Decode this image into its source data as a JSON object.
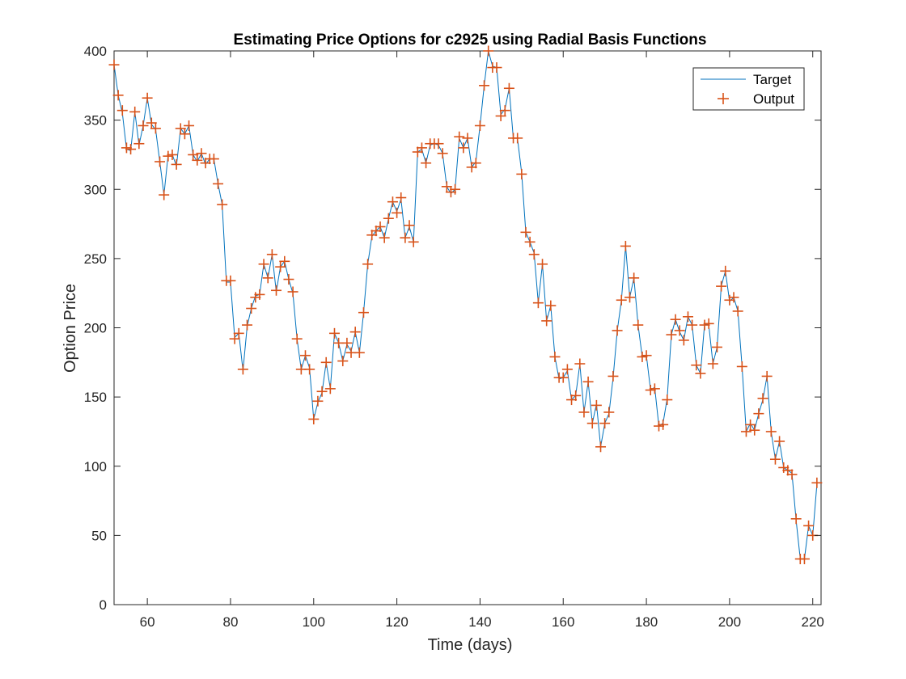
{
  "chart_data": {
    "type": "line",
    "title": "Estimating Price Options for c2925 using Radial Basis Functions",
    "xlabel": "Time (days)",
    "ylabel": "Option Price",
    "xlim": [
      52,
      222
    ],
    "ylim": [
      0,
      400
    ],
    "xticks": [
      60,
      80,
      100,
      120,
      140,
      160,
      180,
      200,
      220
    ],
    "yticks": [
      0,
      50,
      100,
      150,
      200,
      250,
      300,
      350,
      400
    ],
    "grid": false,
    "legend_position": "top-right",
    "colors": {
      "target": "#0072BD",
      "output": "#D95319",
      "axes": "#262626"
    },
    "x_start": 52,
    "series": [
      {
        "name": "Target",
        "style": "line",
        "values": [
          390,
          368,
          355,
          329,
          328,
          356,
          332,
          346,
          366,
          347,
          343,
          320,
          296,
          325,
          325,
          317,
          344,
          340,
          346,
          325,
          320,
          326,
          318,
          322,
          322,
          304,
          289,
          233,
          233,
          193,
          196,
          169,
          201,
          214,
          223,
          224,
          246,
          236,
          253,
          226,
          244,
          248,
          235,
          225,
          192,
          170,
          180,
          171,
          134,
          146,
          153,
          175,
          156,
          196,
          189,
          176,
          188,
          183,
          197,
          182,
          211,
          246,
          266,
          270,
          273,
          265,
          279,
          291,
          284,
          293,
          265,
          273,
          262,
          327,
          329,
          319,
          332,
          333,
          332,
          326,
          302,
          297,
          300,
          337,
          330,
          337,
          316,
          320,
          346,
          375,
          400,
          389,
          388,
          354,
          358,
          373,
          337,
          337,
          312,
          269,
          262,
          254,
          218,
          246,
          205,
          216,
          179,
          163,
          164,
          169,
          148,
          151,
          174,
          139,
          161,
          131,
          145,
          114,
          131,
          138,
          164,
          198,
          220,
          259,
          222,
          236,
          202,
          179,
          180,
          155,
          157,
          129,
          131,
          149,
          195,
          206,
          197,
          191,
          208,
          202,
          173,
          167,
          203,
          202,
          174,
          186,
          230,
          241,
          219,
          222,
          212,
          172,
          125,
          131,
          126,
          138,
          148,
          165,
          125,
          105,
          118,
          99,
          97,
          95,
          61,
          33,
          33,
          57,
          50,
          87
        ]
      },
      {
        "name": "Output",
        "style": "markers",
        "values": [
          390,
          368,
          357,
          330,
          329,
          356,
          333,
          346,
          366,
          348,
          344,
          320,
          296,
          324,
          325,
          318,
          344,
          340,
          346,
          325,
          321,
          326,
          319,
          322,
          322,
          304,
          289,
          234,
          234,
          192,
          196,
          170,
          202,
          214,
          222,
          224,
          246,
          236,
          253,
          227,
          244,
          248,
          235,
          226,
          192,
          170,
          180,
          170,
          134,
          147,
          154,
          175,
          156,
          196,
          189,
          176,
          189,
          182,
          197,
          182,
          211,
          246,
          267,
          270,
          273,
          265,
          279,
          291,
          283,
          294,
          265,
          274,
          262,
          327,
          330,
          319,
          333,
          333,
          333,
          326,
          302,
          298,
          300,
          338,
          330,
          337,
          316,
          319,
          346,
          375,
          400,
          388,
          388,
          353,
          357,
          373,
          337,
          337,
          311,
          269,
          262,
          253,
          218,
          246,
          205,
          216,
          179,
          164,
          164,
          170,
          148,
          151,
          174,
          139,
          161,
          131,
          144,
          114,
          131,
          139,
          165,
          198,
          220,
          259,
          222,
          236,
          202,
          179,
          180,
          155,
          156,
          129,
          130,
          148,
          195,
          206,
          198,
          191,
          208,
          202,
          173,
          167,
          202,
          203,
          174,
          186,
          230,
          241,
          220,
          222,
          212,
          172,
          125,
          130,
          126,
          138,
          149,
          165,
          125,
          105,
          118,
          99,
          97,
          94,
          62,
          33,
          33,
          57,
          50,
          88
        ]
      }
    ]
  }
}
